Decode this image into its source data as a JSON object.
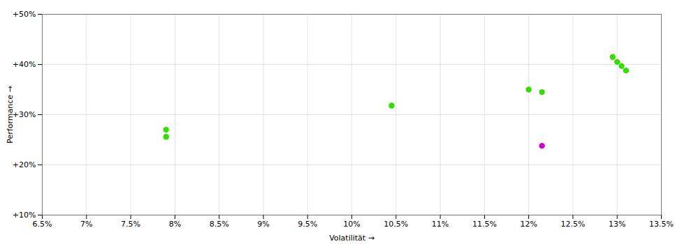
{
  "chart_data": {
    "type": "scatter",
    "xlabel": "Volatilität",
    "ylabel": "Performance",
    "xlim": [
      0.065,
      0.135
    ],
    "ylim": [
      0.1,
      0.5
    ],
    "xticks": [
      {
        "value": 0.065,
        "label": "6.5%"
      },
      {
        "value": 0.07,
        "label": "7%"
      },
      {
        "value": 0.075,
        "label": "7.5%"
      },
      {
        "value": 0.08,
        "label": "8%"
      },
      {
        "value": 0.085,
        "label": "8.5%"
      },
      {
        "value": 0.09,
        "label": "9%"
      },
      {
        "value": 0.095,
        "label": "9.5%"
      },
      {
        "value": 0.1,
        "label": "10%"
      },
      {
        "value": 0.105,
        "label": "10.5%"
      },
      {
        "value": 0.11,
        "label": "11%"
      },
      {
        "value": 0.115,
        "label": "11.5%"
      },
      {
        "value": 0.12,
        "label": "12%"
      },
      {
        "value": 0.125,
        "label": "12.5%"
      },
      {
        "value": 0.13,
        "label": "13%"
      },
      {
        "value": 0.135,
        "label": "13.5%"
      }
    ],
    "yticks": [
      {
        "value": 0.1,
        "label": "+10%"
      },
      {
        "value": 0.2,
        "label": "+20%"
      },
      {
        "value": 0.3,
        "label": "+30%"
      },
      {
        "value": 0.4,
        "label": "+40%"
      },
      {
        "value": 0.5,
        "label": "+50%"
      }
    ],
    "grid": true,
    "series": [
      {
        "color": "#33dd00",
        "x": [
          0.079,
          0.079,
          0.1045,
          0.12,
          0.1215,
          0.1295,
          0.13,
          0.1305,
          0.131
        ],
        "values": [
          0.27,
          0.256,
          0.318,
          0.35,
          0.345,
          0.415,
          0.405,
          0.397,
          0.388
        ]
      },
      {
        "color": "#cc00cc",
        "x": [
          0.1215
        ],
        "values": [
          0.238
        ]
      }
    ]
  }
}
